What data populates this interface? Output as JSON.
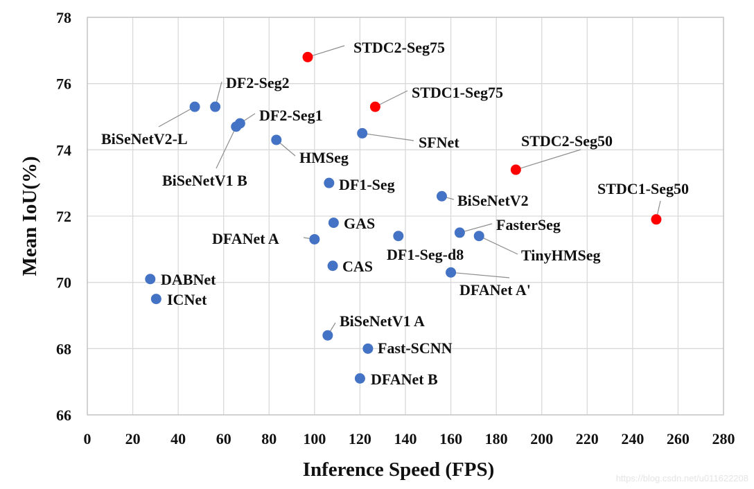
{
  "chart_data": {
    "type": "scatter",
    "title": "",
    "xlabel": "Inference Speed (FPS)",
    "ylabel": "Mean IoU(%)",
    "xlim": [
      0,
      280
    ],
    "ylim": [
      66,
      78
    ],
    "xticks": [
      0,
      20,
      40,
      60,
      80,
      100,
      120,
      140,
      160,
      180,
      200,
      220,
      240,
      260,
      280
    ],
    "yticks": [
      66,
      68,
      70,
      72,
      74,
      76,
      78
    ],
    "grid": true,
    "colors": {
      "proposed": "#ff0000",
      "other": "#4472c4"
    },
    "points": [
      {
        "name": "STDC2-Seg75",
        "x": 97.0,
        "y": 76.8,
        "group": "proposed"
      },
      {
        "name": "STDC1-Seg75",
        "x": 126.7,
        "y": 75.3,
        "group": "proposed"
      },
      {
        "name": "STDC2-Seg50",
        "x": 188.6,
        "y": 73.4,
        "group": "proposed"
      },
      {
        "name": "STDC1-Seg50",
        "x": 250.4,
        "y": 71.9,
        "group": "proposed"
      },
      {
        "name": "BiSeNetV2-L",
        "x": 47.3,
        "y": 75.3,
        "group": "other"
      },
      {
        "name": "DF2-Seg2",
        "x": 56.3,
        "y": 75.3,
        "group": "other"
      },
      {
        "name": "DF2-Seg1",
        "x": 67.2,
        "y": 74.8,
        "group": "other"
      },
      {
        "name": "BiSeNetV1 B",
        "x": 65.5,
        "y": 74.7,
        "group": "other"
      },
      {
        "name": "HMSeg",
        "x": 83.2,
        "y": 74.3,
        "group": "other"
      },
      {
        "name": "SFNet",
        "x": 121.0,
        "y": 74.5,
        "group": "other"
      },
      {
        "name": "DF1-Seg",
        "x": 106.4,
        "y": 73.0,
        "group": "other"
      },
      {
        "name": "BiSeNetV2",
        "x": 156.0,
        "y": 72.6,
        "group": "other"
      },
      {
        "name": "GAS",
        "x": 108.4,
        "y": 71.8,
        "group": "other"
      },
      {
        "name": "DF1-Seg-d8",
        "x": 136.9,
        "y": 71.4,
        "group": "other"
      },
      {
        "name": "FasterSeg",
        "x": 163.9,
        "y": 71.5,
        "group": "other"
      },
      {
        "name": "TinyHMSeg",
        "x": 172.4,
        "y": 71.4,
        "group": "other"
      },
      {
        "name": "DFANet A",
        "x": 100.0,
        "y": 71.3,
        "group": "other"
      },
      {
        "name": "CAS",
        "x": 108.0,
        "y": 70.5,
        "group": "other"
      },
      {
        "name": "DFANet A'",
        "x": 160.0,
        "y": 70.3,
        "group": "other"
      },
      {
        "name": "DABNet",
        "x": 27.7,
        "y": 70.1,
        "group": "other"
      },
      {
        "name": "ICNet",
        "x": 30.3,
        "y": 69.5,
        "group": "other"
      },
      {
        "name": "BiSeNetV1 A",
        "x": 105.8,
        "y": 68.4,
        "group": "other"
      },
      {
        "name": "Fast-SCNN",
        "x": 123.5,
        "y": 68.0,
        "group": "other"
      },
      {
        "name": "DFANet B",
        "x": 120.0,
        "y": 67.1,
        "group": "other"
      }
    ]
  },
  "watermark": "https://blog.csdn.net/u011622208"
}
